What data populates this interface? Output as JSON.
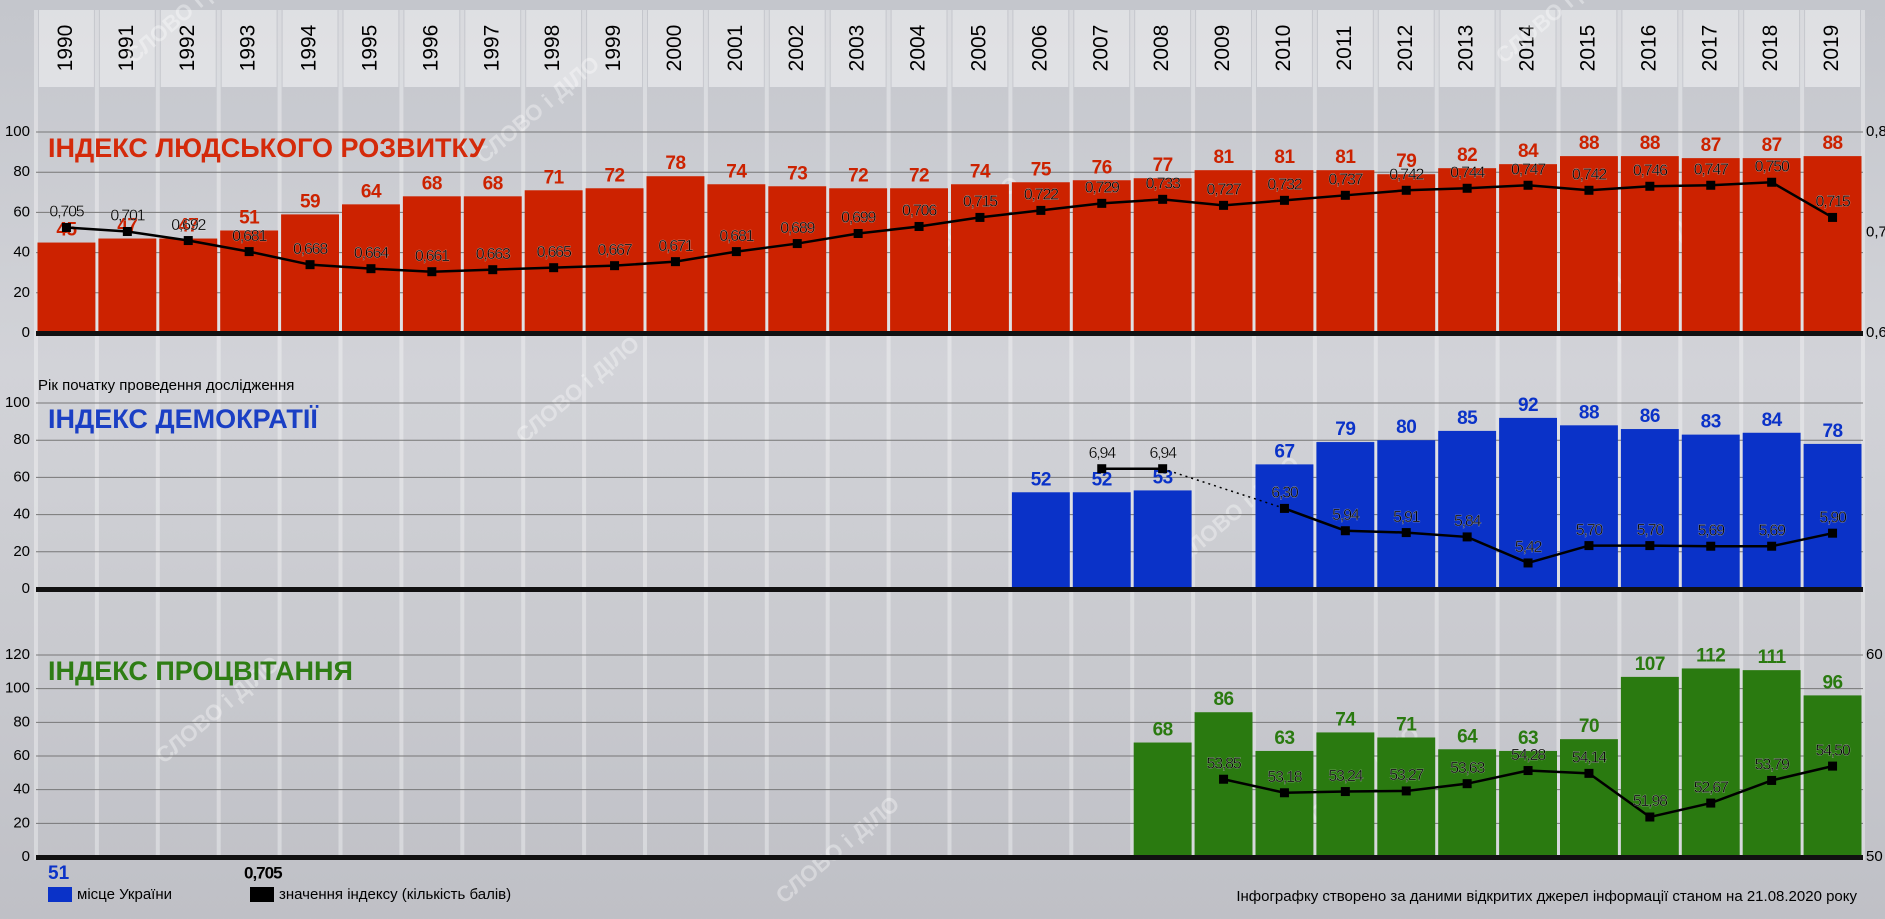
{
  "watermark": "СЛОВО і ДІЛО",
  "chart_data": [
    {
      "type": "bar",
      "title": "ІНДЕКС ЛЮДСЬКОГО РОЗВИТКУ",
      "categories": [
        "1990",
        "1991",
        "1992",
        "1993",
        "1994",
        "1995",
        "1996",
        "1997",
        "1998",
        "1999",
        "2000",
        "2001",
        "2002",
        "2003",
        "2004",
        "2005",
        "2006",
        "2007",
        "2008",
        "2009",
        "2010",
        "2011",
        "2012",
        "2013",
        "2014",
        "2015",
        "2016",
        "2017",
        "2018",
        "2019"
      ],
      "ylim": [
        0,
        100
      ],
      "yticks": [
        0,
        20,
        40,
        60,
        80,
        100
      ],
      "y2lim": [
        0.6,
        0.8
      ],
      "y2ticks": [
        {
          "value": 0.6,
          "label": "0,6"
        },
        {
          "value": 0.7,
          "label": "0,7"
        },
        {
          "value": 0.8,
          "label": "0,8"
        }
      ],
      "grid": true,
      "series": [
        {
          "color": "#cc2200",
          "values": [
            45,
            47,
            47,
            51,
            59,
            64,
            68,
            68,
            71,
            72,
            78,
            74,
            73,
            72,
            72,
            74,
            75,
            76,
            77,
            81,
            81,
            81,
            79,
            82,
            84,
            88,
            88,
            87,
            87,
            88
          ]
        },
        {
          "color": "#000000",
          "axis": "y2",
          "values": [
            0.705,
            0.701,
            0.692,
            0.681,
            0.668,
            0.664,
            0.661,
            0.663,
            0.665,
            0.667,
            0.671,
            0.681,
            0.689,
            0.699,
            0.706,
            0.715,
            0.722,
            0.729,
            0.733,
            0.727,
            0.732,
            0.737,
            0.742,
            0.744,
            0.747,
            0.742,
            0.746,
            0.747,
            0.75,
            0.715
          ],
          "value_labels": [
            "0,705",
            "0,701",
            "0,692",
            "0,681",
            "0,668",
            "0,664",
            "0,661",
            "0,663",
            "0,665",
            "0,667",
            "0,671",
            "0,681",
            "0,689",
            "0,699",
            "0,706",
            "0,715",
            "0,722",
            "0,729",
            "0,733",
            "0,727",
            "0,732",
            "0,737",
            "0,742",
            "0,744",
            "0,747",
            "0,742",
            "0,746",
            "0,747",
            "0,750",
            "0,715"
          ]
        }
      ]
    },
    {
      "type": "bar",
      "title": "ІНДЕКС ДЕМОКРАТІЇ",
      "annotation": "Рік початку проведення дослідження",
      "ylim": [
        0,
        100
      ],
      "yticks": [
        0,
        20,
        40,
        60,
        80,
        100
      ],
      "y2lim": [
        5,
        8
      ],
      "grid": true,
      "series": [
        {
          "color": "#0a32c8",
          "values": [
            null,
            null,
            null,
            null,
            null,
            null,
            null,
            null,
            null,
            null,
            null,
            null,
            null,
            null,
            null,
            null,
            52,
            52,
            53,
            null,
            67,
            79,
            80,
            85,
            92,
            88,
            86,
            83,
            84,
            78
          ]
        },
        {
          "color": "#000000",
          "axis": "y2",
          "values": [
            null,
            null,
            null,
            null,
            null,
            null,
            null,
            null,
            null,
            null,
            null,
            null,
            null,
            null,
            null,
            null,
            null,
            6.94,
            6.94,
            null,
            6.3,
            5.94,
            5.91,
            5.84,
            5.42,
            5.7,
            5.7,
            5.69,
            5.69,
            5.9
          ],
          "value_labels": [
            null,
            null,
            null,
            null,
            null,
            null,
            null,
            null,
            null,
            null,
            null,
            null,
            null,
            null,
            null,
            null,
            null,
            "6,94",
            "6,94",
            null,
            "6,30",
            "5,94",
            "5,91",
            "5,84",
            "5,42",
            "5,70",
            "5,70",
            "5,69",
            "5,69",
            "5,90"
          ]
        }
      ]
    },
    {
      "type": "bar",
      "title": "ІНДЕКС ПРОЦВІТАННЯ",
      "ylim": [
        0,
        120
      ],
      "yticks": [
        0,
        20,
        40,
        60,
        80,
        100,
        120
      ],
      "y2lim": [
        50,
        60
      ],
      "y2ticks": [
        50,
        60
      ],
      "grid": true,
      "series": [
        {
          "color": "#2a7a10",
          "values": [
            null,
            null,
            null,
            null,
            null,
            null,
            null,
            null,
            null,
            null,
            null,
            null,
            null,
            null,
            null,
            null,
            null,
            null,
            68,
            86,
            63,
            74,
            71,
            64,
            63,
            70,
            107,
            112,
            111,
            96
          ]
        },
        {
          "color": "#000000",
          "axis": "y2",
          "values": [
            null,
            null,
            null,
            null,
            null,
            null,
            null,
            null,
            null,
            null,
            null,
            null,
            null,
            null,
            null,
            null,
            null,
            null,
            null,
            53.85,
            53.18,
            53.24,
            53.27,
            53.63,
            54.28,
            54.14,
            51.98,
            52.67,
            53.79,
            54.5
          ],
          "value_labels": [
            null,
            null,
            null,
            null,
            null,
            null,
            null,
            null,
            null,
            null,
            null,
            null,
            null,
            null,
            null,
            null,
            null,
            null,
            null,
            "53,85",
            "53,18",
            "53,24",
            "53,27",
            "53,63",
            "54,28",
            "54,14",
            "51,98",
            "52,67",
            "53,79",
            "54,50"
          ]
        }
      ]
    }
  ],
  "legend": {
    "items": [
      {
        "sample": "51",
        "label": "місце України",
        "color": "#0a32c8"
      },
      {
        "sample": "0,705",
        "label": "значення індексу (кількість балів)",
        "color": "#000000"
      }
    ]
  },
  "footer": "Інфографку створено за даними відкритих джерел інформації станом на 21.08.2020 року"
}
